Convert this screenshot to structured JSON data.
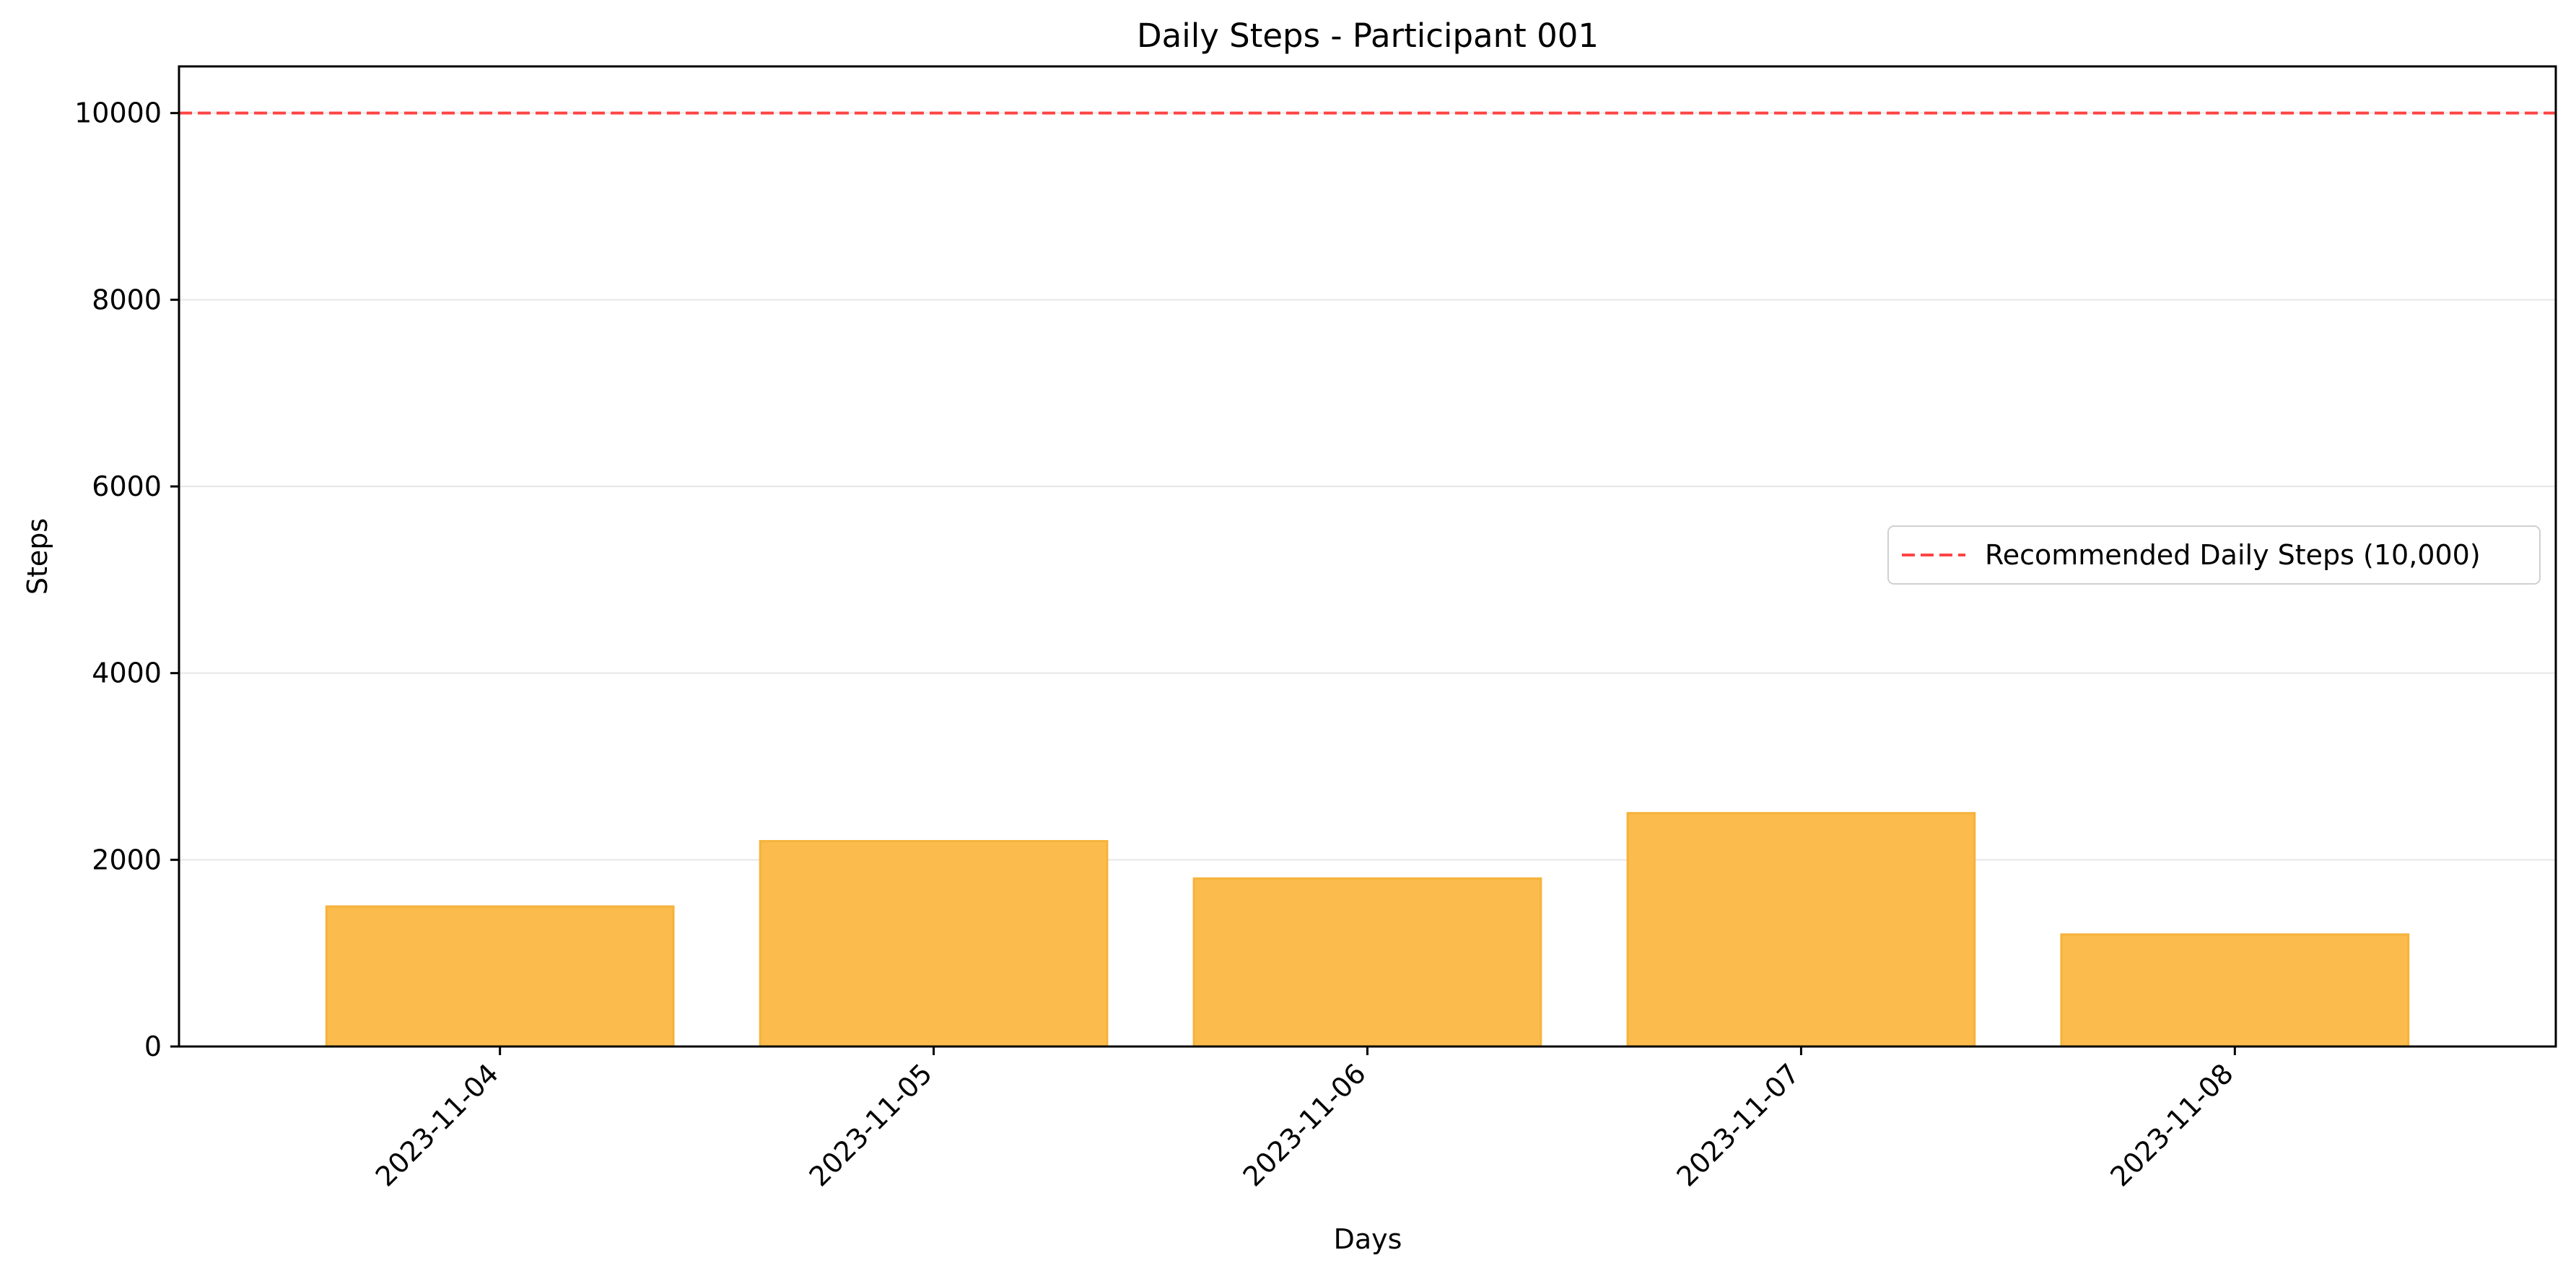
{
  "chart_data": {
    "type": "bar",
    "title": "Daily Steps - Participant 001",
    "xlabel": "Days",
    "ylabel": "Steps",
    "categories": [
      "2023-11-04",
      "2023-11-05",
      "2023-11-06",
      "2023-11-07",
      "2023-11-08"
    ],
    "values": [
      1500,
      2200,
      1800,
      2500,
      1200
    ],
    "ylim": [
      0,
      10500
    ],
    "yticks": [
      0,
      2000,
      4000,
      6000,
      8000,
      10000
    ],
    "bar_color": "#fbbc4d",
    "bar_edge_color": "#f6b23a",
    "reference_line": {
      "value": 10000,
      "label": "Recommended Daily Steps (10,000)",
      "color": "#ff4444",
      "style": "dashed"
    },
    "grid": "horizontal",
    "legend_position": "center-right"
  }
}
